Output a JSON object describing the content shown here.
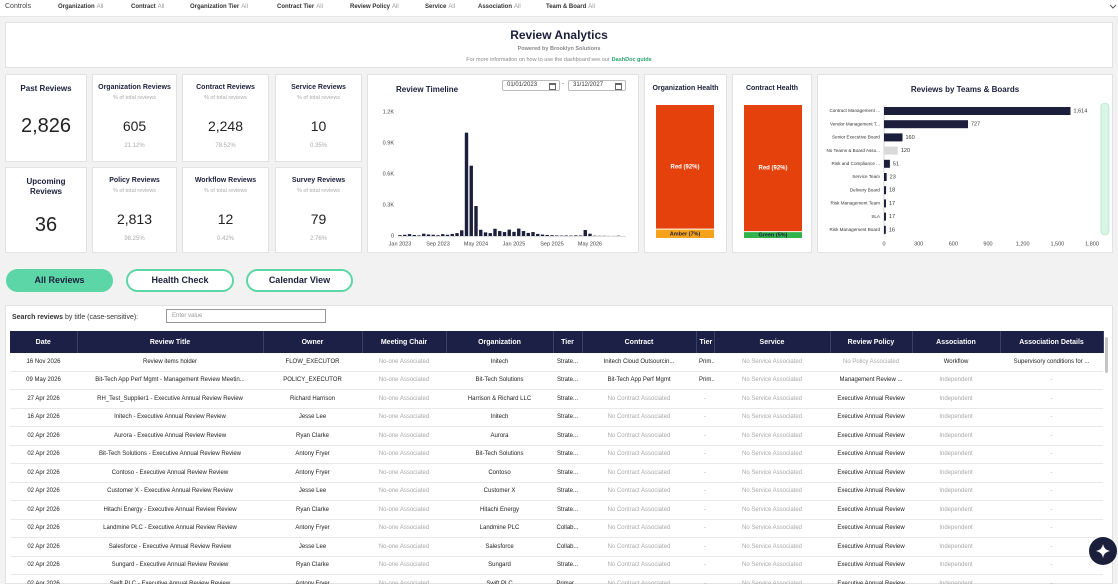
{
  "controls_label": "Controls",
  "filters": [
    {
      "label": "Organization",
      "value": "All"
    },
    {
      "label": "Contract",
      "value": "All"
    },
    {
      "label": "Organization Tier",
      "value": "All"
    },
    {
      "label": "Contract Tier",
      "value": "All"
    },
    {
      "label": "Review Policy",
      "value": "All"
    },
    {
      "label": "Service",
      "value": "All"
    },
    {
      "label": "Association",
      "value": "All"
    },
    {
      "label": "Team & Board",
      "value": "All"
    }
  ],
  "header": {
    "title": "Review Analytics",
    "subtitle": "Powered by Brooklyn Solutions",
    "info_text": "For more information on how to use the dashboard see our",
    "info_link": "DashDoc guide"
  },
  "kpis": [
    {
      "title": "Past Reviews",
      "value": "2,826"
    },
    {
      "title": "Organization Reviews",
      "subtitle": "% of total reviews",
      "value": "605",
      "percent": "21.12%"
    },
    {
      "title": "Contract Reviews",
      "subtitle": "% of total reviews",
      "value": "2,248",
      "percent": "78.52%"
    },
    {
      "title": "Service Reviews",
      "subtitle": "% of total reviews",
      "value": "10",
      "percent": "0.35%"
    },
    {
      "title": "Upcoming Reviews",
      "value": "36"
    },
    {
      "title": "Policy Reviews",
      "subtitle": "% of total reviews",
      "value": "2,813",
      "percent": "98.25%"
    },
    {
      "title": "Workflow Reviews",
      "subtitle": "% of total reviews",
      "value": "12",
      "percent": "0.42%"
    },
    {
      "title": "Survey Reviews",
      "subtitle": "% of total reviews",
      "value": "79",
      "percent": "2.76%"
    }
  ],
  "chart_data": [
    {
      "type": "bar",
      "title": "Review Timeline",
      "date_from": "01/01/2023",
      "date_separator": "-",
      "date_to": "31/12/2027",
      "color": "#1b1f3b",
      "grid": false,
      "categories": [
        "Jan 2023",
        null,
        null,
        null,
        null,
        null,
        null,
        null,
        "Sep 2023",
        null,
        null,
        null,
        null,
        null,
        null,
        null,
        "May 2024",
        null,
        null,
        null,
        null,
        null,
        null,
        null,
        "Jan 2025",
        null,
        null,
        null,
        null,
        null,
        null,
        null,
        "Sep 2025",
        null,
        null,
        null,
        null,
        null,
        null,
        null,
        "May 2026",
        null,
        null,
        null,
        null,
        null,
        null,
        null
      ],
      "values": [
        8,
        12,
        18,
        10,
        6,
        22,
        15,
        12,
        8,
        18,
        12,
        20,
        28,
        55,
        1000,
        680,
        290,
        60,
        35,
        28,
        70,
        48,
        38,
        62,
        40,
        72,
        48,
        30,
        38,
        20,
        14,
        10,
        8,
        5,
        4,
        5,
        4,
        6,
        5,
        58,
        22,
        3,
        2,
        2,
        1,
        1,
        3,
        0
      ],
      "ylim": [
        0,
        1200
      ],
      "yticks": [
        0,
        {
          "value": 300,
          "label": "0.3K"
        },
        {
          "value": 600,
          "label": "0.6K"
        },
        {
          "value": 900,
          "label": "0.9K"
        },
        {
          "value": 1200,
          "label": "1.2K"
        }
      ]
    },
    {
      "type": "stacked-bar",
      "title": "Organization Health",
      "series": [
        {
          "color": "#e4410d",
          "values": [
            92
          ],
          "value_labels": [
            "Red (92%)"
          ]
        },
        {
          "color": "#f6a31c",
          "values": [
            7
          ],
          "value_labels": [
            "Amber (7%)"
          ]
        }
      ]
    },
    {
      "type": "stacked-bar",
      "title": "Contract Health",
      "series": [
        {
          "color": "#e4410d",
          "values": [
            92
          ],
          "value_labels": [
            "Red (92%)"
          ]
        },
        {
          "color": "#2fb34a",
          "values": [
            5
          ],
          "value_labels": [
            "Green (5%)"
          ]
        }
      ]
    },
    {
      "type": "horizontal-bar",
      "title": "Reviews by Teams & Boards",
      "categories": [
        "Contract Management ...",
        "Vendor Management T...",
        "Senior Executive Board",
        "No Teams & Board Asso...",
        "Risk and Compliance ...",
        "Service Team",
        "Delivery Board",
        "Risk Management Team",
        "SLA",
        "Risk Management Board"
      ],
      "values": [
        1614,
        727,
        160,
        120,
        51,
        23,
        18,
        17,
        17,
        16
      ],
      "value_labels": [
        "1,614",
        "727",
        "160",
        "120",
        "51",
        "23",
        "18",
        "17",
        "17",
        "16"
      ],
      "colors": [
        "#1b1f3b",
        "#1b1f3b",
        "#1b1f3b",
        "#d9d9d9",
        "#1b1f3b",
        "#1b1f3b",
        "#1b1f3b",
        "#1b1f3b",
        "#1b1f3b",
        "#1b1f3b"
      ],
      "xlim": [
        0,
        1800
      ],
      "xticks": [
        0,
        300,
        600,
        900,
        {
          "value": 1200,
          "label": "1,200"
        },
        {
          "value": 1500,
          "label": "1,500"
        },
        {
          "value": 1800,
          "label": "1,800"
        }
      ]
    }
  ],
  "tabs": [
    "All Reviews",
    "Health Check",
    "Calendar View"
  ],
  "search": {
    "label_bold": "Search reviews",
    "label": "by title (case-sensitive):",
    "placeholder": "Enter value"
  },
  "table": {
    "columns": [
      "Date",
      "Review Title",
      "Owner",
      "Meeting Chair",
      "Organization",
      "Tier",
      "Contract",
      "Tier",
      "Service",
      "Review Policy",
      "Association",
      "Association Details"
    ],
    "rows": [
      [
        "16 Nov 2026",
        "Review items holder",
        "FLOW_EXECUTOR",
        "No-one Associated",
        "Initech",
        "Strate...",
        "Initech Cloud Outsourcin...",
        "Prim...",
        "No Service Associated",
        "No Policy Associated",
        "Workflow",
        "Supervisory conditions for ..."
      ],
      [
        "09 May 2026",
        "Bit-Tech App Perf Mgmt - Management Review Meetin...",
        "POLICY_EXECUTOR",
        "No-one Associated",
        "Bit-Tech Solutions",
        "Strate...",
        "Bit-Tech App Perf Mgmt",
        "Prim...",
        "No Service Associated",
        "Management Review ...",
        "Independent",
        "-"
      ],
      [
        "27 Apr 2026",
        "RH_Test_Supplier1 - Executive Annual Review Review",
        "Richard Harrison",
        "No-one Associated",
        "Harrison & Richard LLC",
        "Strate...",
        "No Contract Associated",
        "-",
        "No Service Associated",
        "Executive Annual Review",
        "Independent",
        "-"
      ],
      [
        "16 Apr 2026",
        "Initech - Executive Annual Review Review",
        "Jesse Lee",
        "No-one Associated",
        "Initech",
        "Strate...",
        "No Contract Associated",
        "-",
        "No Service Associated",
        "Executive Annual Review",
        "Independent",
        "-"
      ],
      [
        "02 Apr 2026",
        "Aurora - Executive Annual Review Review",
        "Ryan Clarke",
        "No-one Associated",
        "Aurora",
        "Strate...",
        "No Contract Associated",
        "-",
        "No Service Associated",
        "Executive Annual Review",
        "Independent",
        "-"
      ],
      [
        "02 Apr 2026",
        "Bit-Tech Solutions - Executive Annual Review Review",
        "Antony Fryer",
        "No-one Associated",
        "Bit-Tech Solutions",
        "Strate...",
        "No Contract Associated",
        "-",
        "No Service Associated",
        "Executive Annual Review",
        "Independent",
        "-"
      ],
      [
        "02 Apr 2026",
        "Contoso - Executive Annual Review Review",
        "Antony Fryer",
        "No-one Associated",
        "Contoso",
        "Strate...",
        "No Contract Associated",
        "-",
        "No Service Associated",
        "Executive Annual Review",
        "Independent",
        "-"
      ],
      [
        "02 Apr 2026",
        "Customer X - Executive Annual Review Review",
        "Jesse Lee",
        "No-one Associated",
        "Customer X",
        "Strate...",
        "No Contract Associated",
        "-",
        "No Service Associated",
        "Executive Annual Review",
        "Independent",
        "-"
      ],
      [
        "02 Apr 2026",
        "Hitachi Energy - Executive Annual Review Review",
        "Ryan Clarke",
        "No-one Associated",
        "Hitachi Energy",
        "Strate...",
        "No Contract Associated",
        "-",
        "No Service Associated",
        "Executive Annual Review",
        "Independent",
        "-"
      ],
      [
        "02 Apr 2026",
        "Landmine PLC - Executive Annual Review Review",
        "Antony Fryer",
        "No-one Associated",
        "Landmine PLC",
        "Collab...",
        "No Contract Associated",
        "-",
        "No Service Associated",
        "Executive Annual Review",
        "Independent",
        "-"
      ],
      [
        "02 Apr 2026",
        "Salesforce - Executive Annual Review Review",
        "Jesse Lee",
        "No-one Associated",
        "Salesforce",
        "Collab...",
        "No Contract Associated",
        "-",
        "No Service Associated",
        "Executive Annual Review",
        "Independent",
        "-"
      ],
      [
        "02 Apr 2026",
        "Sungard - Executive Annual Review Review",
        "Ryan Clarke",
        "No-one Associated",
        "Sungard",
        "Strate...",
        "No Contract Associated",
        "-",
        "No Service Associated",
        "Executive Annual Review",
        "Independent",
        "-"
      ],
      [
        "02 Apr 2026",
        "Swift PLC - Executive Annual Review Review",
        "Antony Fryer",
        "No-one Associated",
        "Swift PLC",
        "Primar...",
        "No Contract Associated",
        "-",
        "No Service Associated",
        "Executive Annual Review",
        "Independent",
        "-"
      ]
    ]
  }
}
